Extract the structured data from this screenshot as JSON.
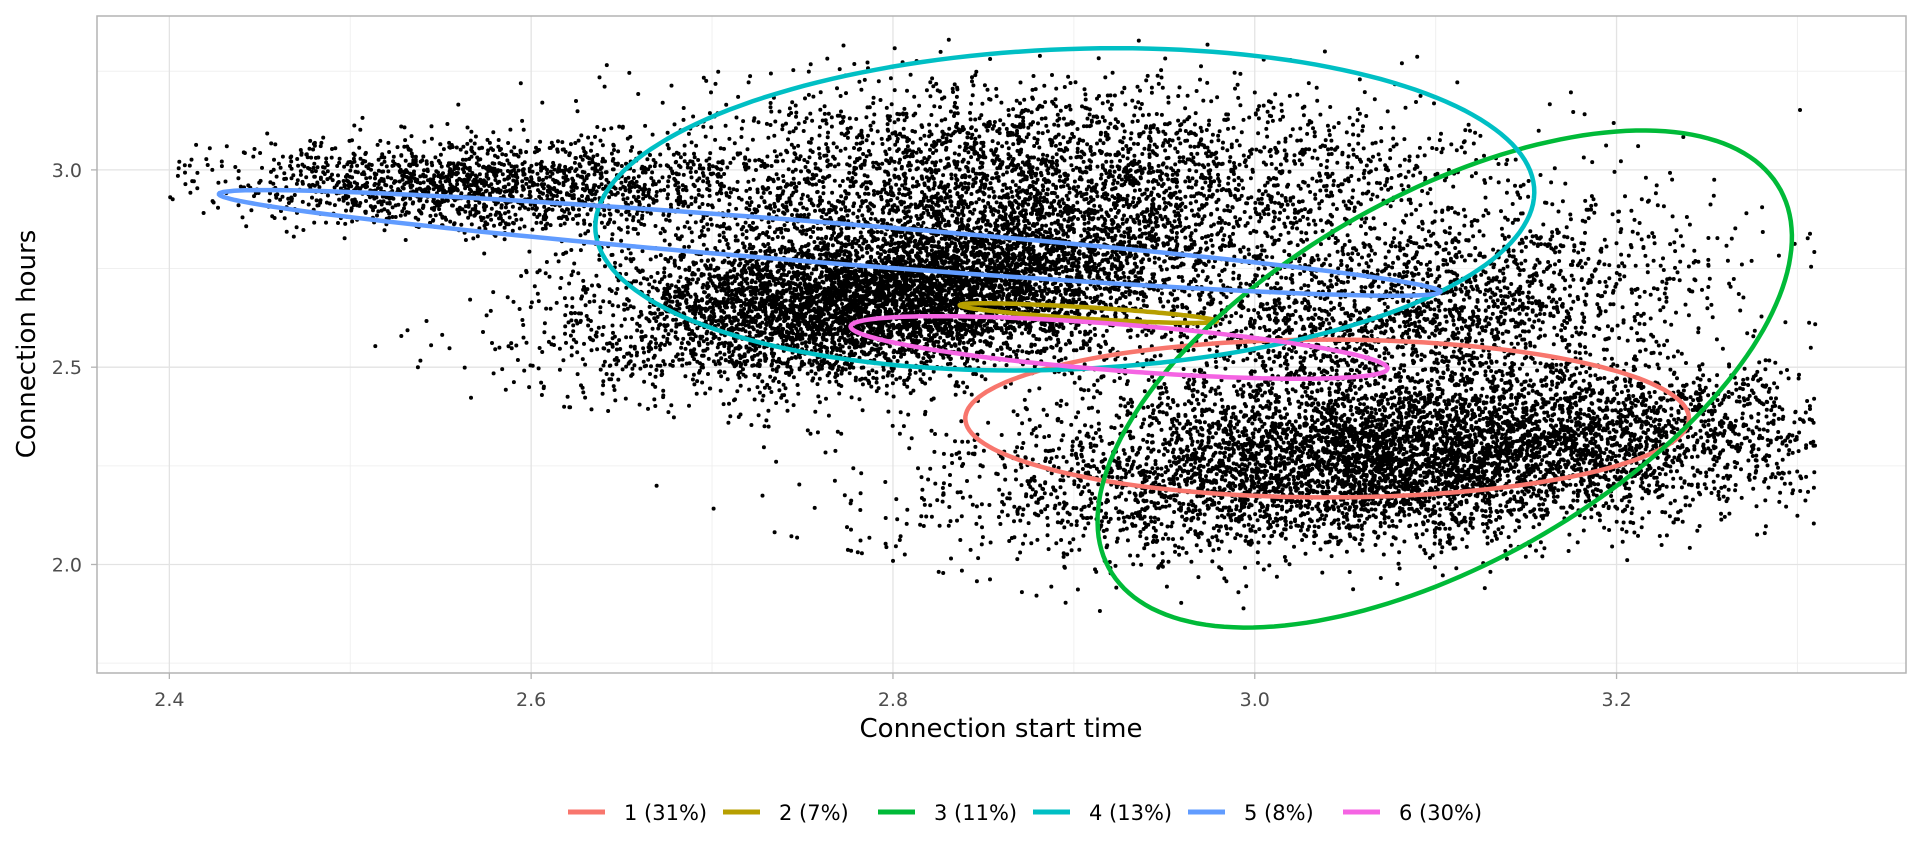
{
  "chart_data": {
    "type": "scatter",
    "title": "",
    "xlabel": "Connection start time",
    "ylabel": "Connection hours",
    "xlim": [
      2.36,
      3.36
    ],
    "ylim": [
      1.725,
      3.39
    ],
    "x_ticks": [
      {
        "value": 2.4,
        "label": "2.4"
      },
      {
        "value": 2.6,
        "label": "2.6"
      },
      {
        "value": 2.8,
        "label": "2.8"
      },
      {
        "value": 3.0,
        "label": "3.0"
      },
      {
        "value": 3.2,
        "label": "3.2"
      }
    ],
    "y_ticks": [
      {
        "value": 2.0,
        "label": "2.0"
      },
      {
        "value": 2.5,
        "label": "2.5"
      },
      {
        "value": 3.0,
        "label": "3.0"
      }
    ],
    "grid": true,
    "legend_position": "bottom",
    "point_color": "#000000",
    "point_clusters": [
      {
        "center": [
          2.8,
          2.68
        ],
        "sd": [
          0.07,
          0.11
        ],
        "angle": -24,
        "count": 6500
      },
      {
        "center": [
          3.09,
          2.27
        ],
        "sd": [
          0.09,
          0.13
        ],
        "angle": -48,
        "count": 6500
      },
      {
        "center": [
          2.88,
          2.97
        ],
        "sd": [
          0.12,
          0.12
        ],
        "angle": -15,
        "count": 3500
      },
      {
        "center": [
          3.08,
          2.62
        ],
        "sd": [
          0.07,
          0.14
        ],
        "angle": -18,
        "count": 2200
      },
      {
        "center": [
          2.57,
          2.96
        ],
        "sd": [
          0.07,
          0.055
        ],
        "angle": -15,
        "count": 1600
      }
    ],
    "series": [
      {
        "name": "1 (31%)",
        "color": "#F8766D",
        "center": [
          3.04,
          2.37
        ],
        "semi_axes": [
          0.2,
          0.2
        ],
        "angle": -41.5
      },
      {
        "name": "2 (7%)",
        "color": "#B79F00",
        "center": [
          2.908,
          2.637
        ],
        "semi_axes": [
          0.074,
          0.014
        ],
        "angle": -16.5
      },
      {
        "name": "3 (11%)",
        "color": "#00BA38",
        "center": [
          3.105,
          2.47
        ],
        "semi_axes": [
          0.155,
          0.64
        ],
        "angle": -10.5
      },
      {
        "name": "4 (13%)",
        "color": "#00BFC4",
        "center": [
          2.895,
          2.9
        ],
        "semi_axes": [
          0.257,
          0.41
        ],
        "angle": -6.5
      },
      {
        "name": "5 (8%)",
        "color": "#619CFF",
        "center": [
          2.765,
          2.815
        ],
        "semi_axes": [
          0.36,
          0.048
        ],
        "angle": -20.5
      },
      {
        "name": "6 (30%)",
        "color": "#F564E3",
        "center": [
          2.925,
          2.55
        ],
        "semi_axes": [
          0.159,
          0.055
        ],
        "angle": -22.5
      }
    ]
  }
}
